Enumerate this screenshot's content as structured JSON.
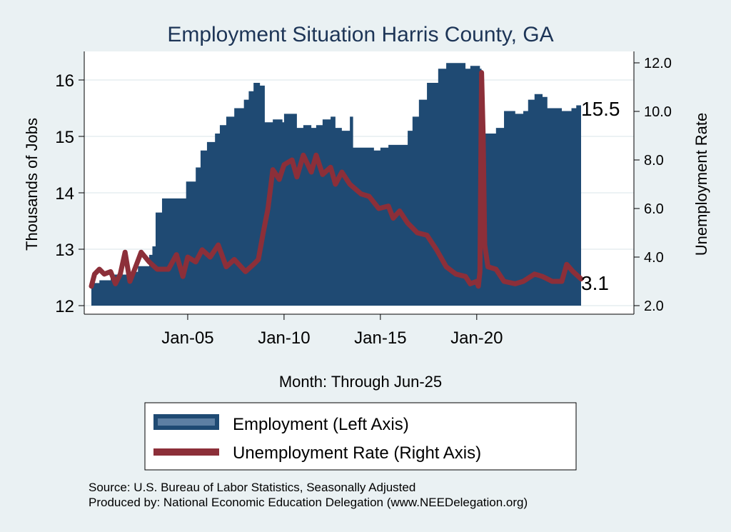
{
  "chart_data": {
    "type": "area",
    "title": "Employment Situation Harris  County, GA",
    "xlabel": "Month: Through Jun-25",
    "ylabel_left": "Thousands of Jobs",
    "ylabel_right": "Unemployment Rate",
    "x_range": [
      "2000-01",
      "2025-06"
    ],
    "x_ticks": [
      "Jan-05",
      "Jan-10",
      "Jan-15",
      "Jan-20"
    ],
    "ylim_left": [
      12,
      16
    ],
    "yticks_left": [
      "12",
      "13",
      "14",
      "15",
      "16"
    ],
    "ylim_right": [
      2.0,
      12.0
    ],
    "yticks_right": [
      "2.0",
      "4.0",
      "6.0",
      "8.0",
      "10.0",
      "12.0"
    ],
    "grid": true,
    "legend_position": "bottom",
    "series": [
      {
        "name": "Employment (Left Axis)",
        "kind": "area",
        "axis": "left",
        "color": "#1f4a73",
        "end_label": "15.5",
        "points": [
          [
            "2000-01",
            12.4
          ],
          [
            "2000-06",
            12.45
          ],
          [
            "2001-01",
            12.55
          ],
          [
            "2001-06",
            12.55
          ],
          [
            "2002-01",
            12.6
          ],
          [
            "2002-06",
            12.7
          ],
          [
            "2003-01",
            12.9
          ],
          [
            "2003-03",
            13.05
          ],
          [
            "2003-05",
            13.65
          ],
          [
            "2003-09",
            13.9
          ],
          [
            "2004-06",
            13.9
          ],
          [
            "2004-12",
            14.2
          ],
          [
            "2005-06",
            14.45
          ],
          [
            "2005-09",
            14.75
          ],
          [
            "2006-01",
            14.9
          ],
          [
            "2006-06",
            15.05
          ],
          [
            "2006-09",
            15.2
          ],
          [
            "2007-01",
            15.35
          ],
          [
            "2007-06",
            15.5
          ],
          [
            "2007-12",
            15.65
          ],
          [
            "2008-03",
            15.8
          ],
          [
            "2008-06",
            15.95
          ],
          [
            "2008-10",
            15.9
          ],
          [
            "2009-01",
            15.25
          ],
          [
            "2009-06",
            15.3
          ],
          [
            "2009-12",
            15.25
          ],
          [
            "2010-01",
            15.4
          ],
          [
            "2010-06",
            15.4
          ],
          [
            "2010-09",
            15.15
          ],
          [
            "2011-01",
            15.2
          ],
          [
            "2011-06",
            15.15
          ],
          [
            "2011-09",
            15.2
          ],
          [
            "2012-01",
            15.3
          ],
          [
            "2012-06",
            15.35
          ],
          [
            "2012-09",
            15.15
          ],
          [
            "2013-01",
            15.1
          ],
          [
            "2013-06",
            15.35
          ],
          [
            "2013-08",
            14.8
          ],
          [
            "2014-06",
            14.8
          ],
          [
            "2014-09",
            14.75
          ],
          [
            "2015-01",
            14.8
          ],
          [
            "2015-06",
            14.85
          ],
          [
            "2016-01",
            14.85
          ],
          [
            "2016-06",
            15.1
          ],
          [
            "2016-09",
            15.35
          ],
          [
            "2017-01",
            15.65
          ],
          [
            "2017-06",
            15.95
          ],
          [
            "2018-01",
            16.2
          ],
          [
            "2018-06",
            16.3
          ],
          [
            "2019-01",
            16.3
          ],
          [
            "2019-06",
            16.2
          ],
          [
            "2019-09",
            16.25
          ],
          [
            "2020-01",
            16.25
          ],
          [
            "2020-03",
            16.2
          ],
          [
            "2020-04",
            14.9
          ],
          [
            "2020-06",
            15.05
          ],
          [
            "2021-01",
            15.15
          ],
          [
            "2021-06",
            15.45
          ],
          [
            "2022-01",
            15.4
          ],
          [
            "2022-06",
            15.45
          ],
          [
            "2022-09",
            15.65
          ],
          [
            "2023-01",
            15.75
          ],
          [
            "2023-06",
            15.7
          ],
          [
            "2023-09",
            15.5
          ],
          [
            "2024-01",
            15.5
          ],
          [
            "2024-06",
            15.45
          ],
          [
            "2024-12",
            15.5
          ],
          [
            "2025-03",
            15.55
          ],
          [
            "2025-06",
            15.5
          ]
        ]
      },
      {
        "name": "Unemployment Rate (Right Axis)",
        "kind": "line",
        "axis": "right",
        "color": "#8c2f39",
        "end_label": "3.1",
        "points": [
          [
            "2000-01",
            2.8
          ],
          [
            "2000-03",
            3.3
          ],
          [
            "2000-06",
            3.5
          ],
          [
            "2000-09",
            3.3
          ],
          [
            "2001-01",
            3.4
          ],
          [
            "2001-04",
            2.9
          ],
          [
            "2001-07",
            3.3
          ],
          [
            "2001-10",
            4.2
          ],
          [
            "2002-01",
            3.0
          ],
          [
            "2002-04",
            3.5
          ],
          [
            "2002-08",
            4.2
          ],
          [
            "2003-01",
            3.8
          ],
          [
            "2003-06",
            3.5
          ],
          [
            "2004-01",
            3.5
          ],
          [
            "2004-06",
            4.1
          ],
          [
            "2004-10",
            3.2
          ],
          [
            "2005-01",
            4.0
          ],
          [
            "2005-06",
            3.8
          ],
          [
            "2005-10",
            4.3
          ],
          [
            "2006-03",
            4.0
          ],
          [
            "2006-08",
            4.5
          ],
          [
            "2007-01",
            3.6
          ],
          [
            "2007-06",
            3.9
          ],
          [
            "2008-01",
            3.4
          ],
          [
            "2008-06",
            3.7
          ],
          [
            "2008-09",
            3.9
          ],
          [
            "2008-12",
            5.0
          ],
          [
            "2009-03",
            6.0
          ],
          [
            "2009-06",
            7.6
          ],
          [
            "2009-10",
            7.2
          ],
          [
            "2010-01",
            7.8
          ],
          [
            "2010-06",
            8.0
          ],
          [
            "2010-09",
            7.3
          ],
          [
            "2011-01",
            8.2
          ],
          [
            "2011-06",
            7.5
          ],
          [
            "2011-09",
            8.2
          ],
          [
            "2012-01",
            7.4
          ],
          [
            "2012-06",
            7.7
          ],
          [
            "2012-09",
            7.0
          ],
          [
            "2013-01",
            7.5
          ],
          [
            "2013-06",
            7.0
          ],
          [
            "2014-01",
            6.6
          ],
          [
            "2014-06",
            6.5
          ],
          [
            "2014-12",
            6.0
          ],
          [
            "2015-06",
            6.1
          ],
          [
            "2015-09",
            5.6
          ],
          [
            "2016-01",
            5.9
          ],
          [
            "2016-06",
            5.4
          ],
          [
            "2016-12",
            5.0
          ],
          [
            "2017-06",
            4.9
          ],
          [
            "2017-12",
            4.3
          ],
          [
            "2018-06",
            3.6
          ],
          [
            "2018-12",
            3.3
          ],
          [
            "2019-06",
            3.2
          ],
          [
            "2019-09",
            2.9
          ],
          [
            "2020-01",
            3.0
          ],
          [
            "2020-02",
            2.8
          ],
          [
            "2020-03",
            3.4
          ],
          [
            "2020-04",
            11.6
          ],
          [
            "2020-05",
            9.0
          ],
          [
            "2020-06",
            4.5
          ],
          [
            "2020-08",
            3.6
          ],
          [
            "2021-01",
            3.5
          ],
          [
            "2021-06",
            3.0
          ],
          [
            "2022-01",
            2.9
          ],
          [
            "2022-06",
            3.0
          ],
          [
            "2023-01",
            3.3
          ],
          [
            "2023-06",
            3.2
          ],
          [
            "2023-12",
            3.0
          ],
          [
            "2024-06",
            3.0
          ],
          [
            "2024-09",
            3.7
          ],
          [
            "2025-01",
            3.4
          ],
          [
            "2025-06",
            3.1
          ]
        ]
      }
    ],
    "source_lines": [
      "Source: U.S. Bureau of Labor Statistics, Seasonally Adjusted",
      "Produced by: National Economic Education Delegation (www.NEEDelegation.org)"
    ]
  }
}
